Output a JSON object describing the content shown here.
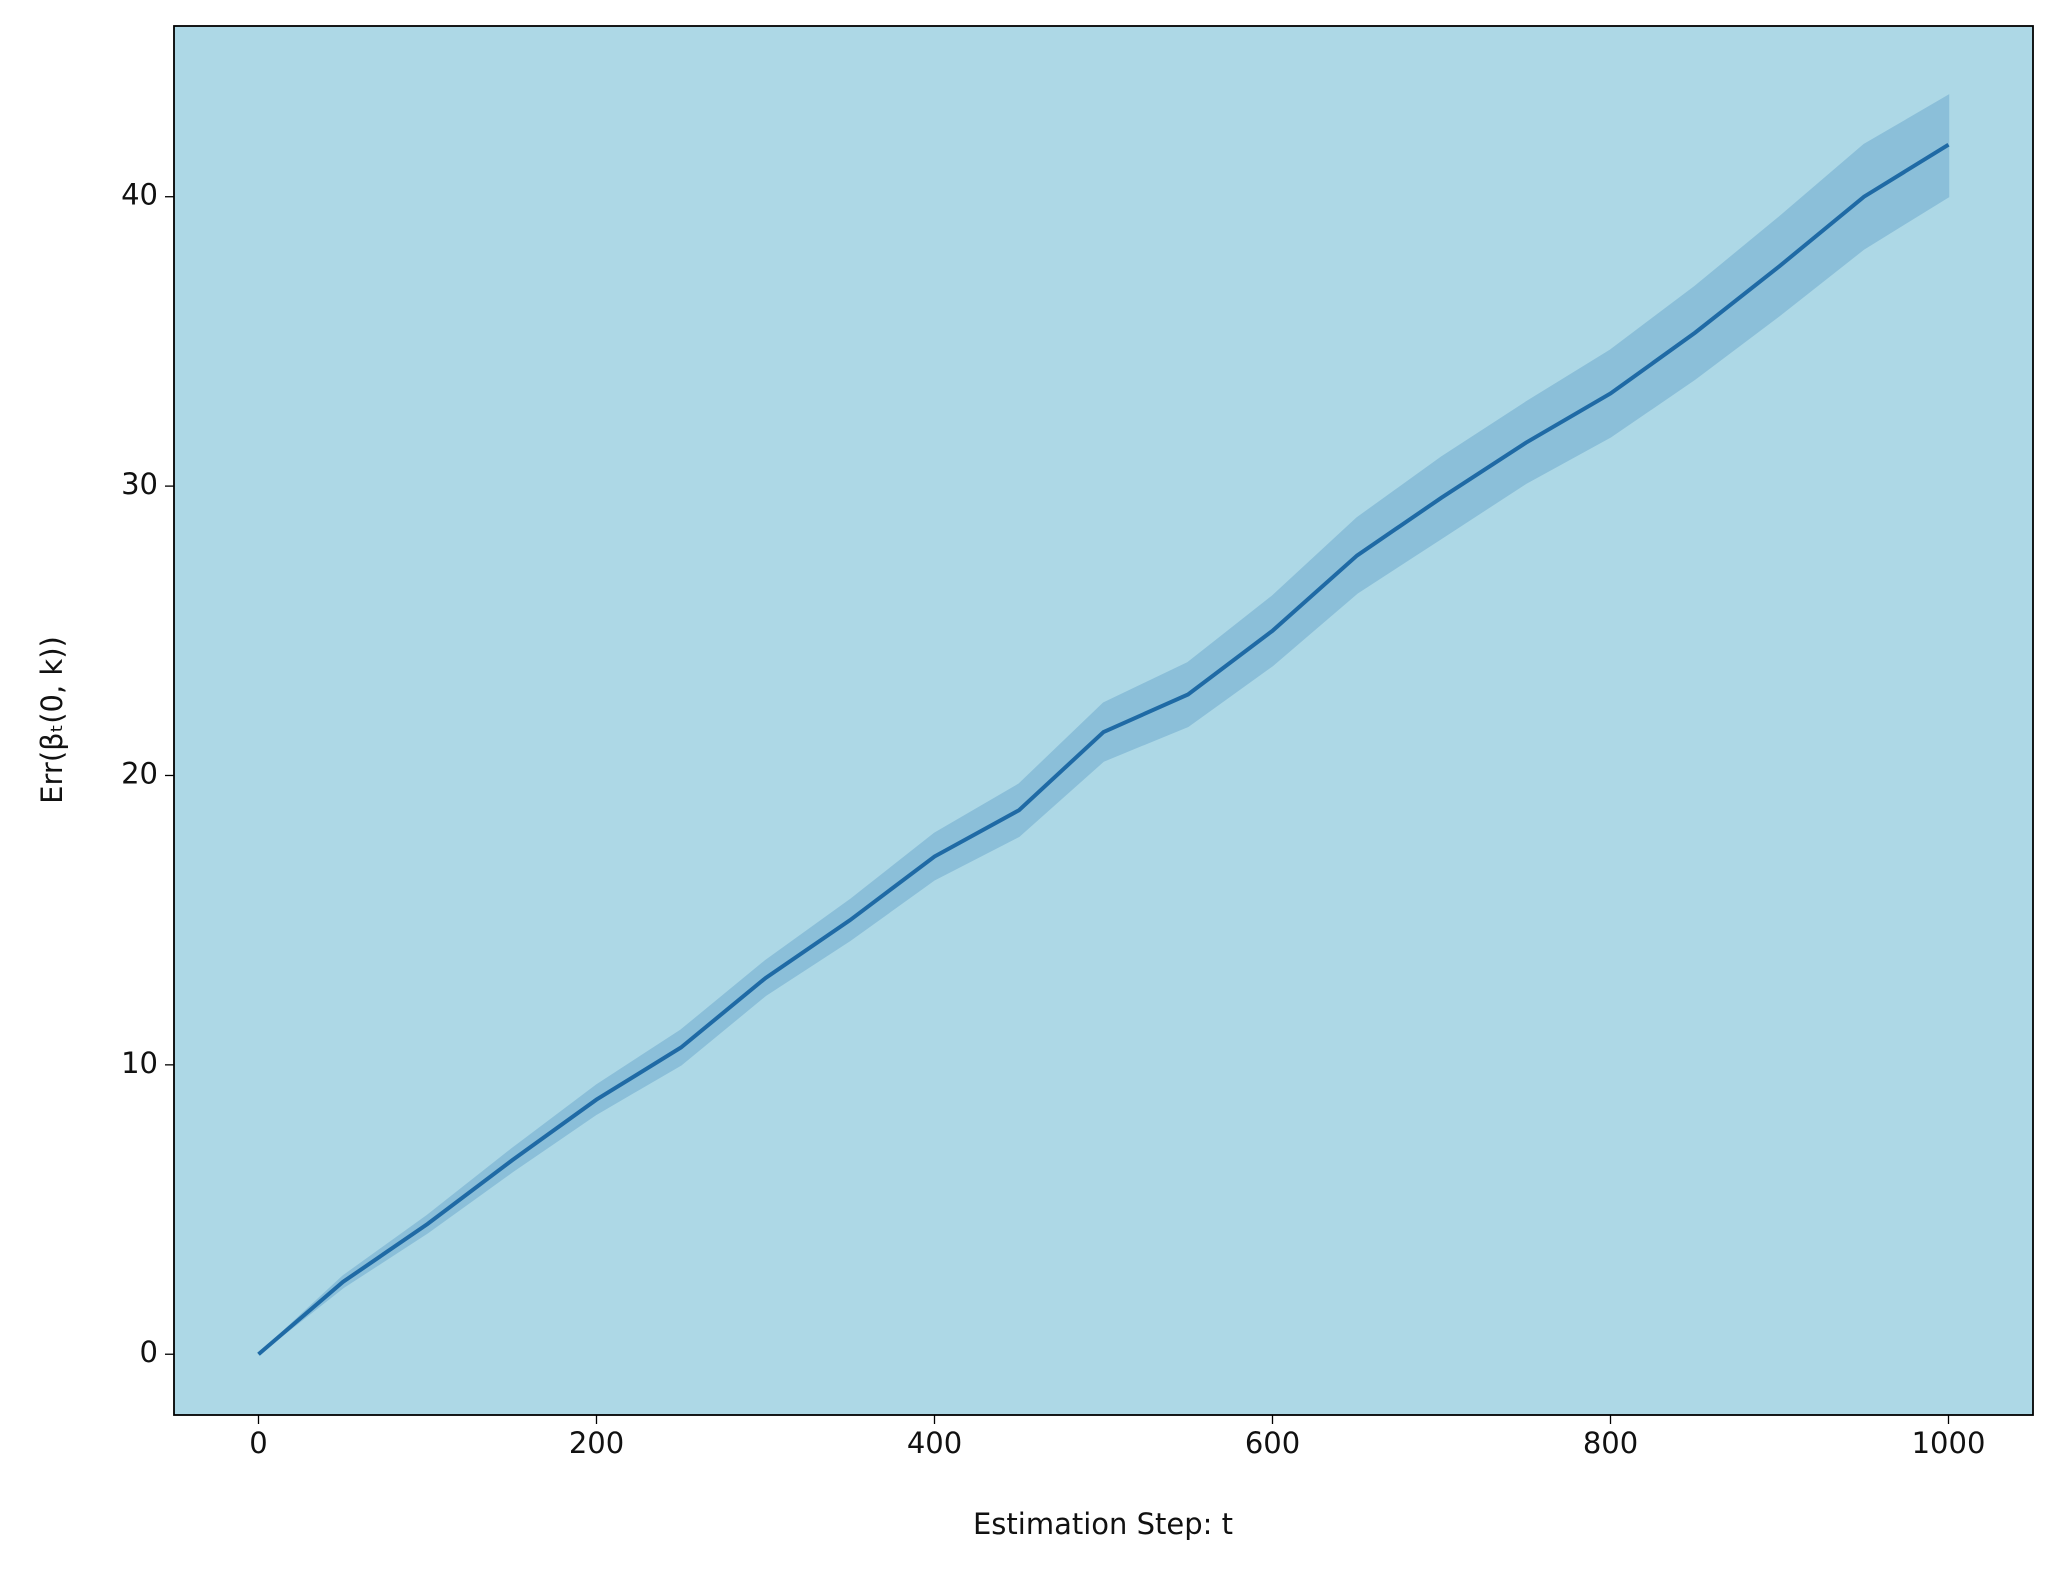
{
  "chart_data": {
    "type": "line",
    "xlabel": "Estimation Step: t",
    "ylabel": "Err(βₜ(0, k))",
    "x": [
      0,
      50,
      100,
      150,
      200,
      250,
      300,
      350,
      400,
      450,
      500,
      550,
      600,
      650,
      700,
      750,
      800,
      850,
      900,
      950,
      1000
    ],
    "series": [
      {
        "color": "#1f6aa5",
        "values": [
          0,
          2.5,
          4.5,
          6.7,
          8.8,
          10.6,
          13.0,
          15.0,
          17.2,
          18.8,
          21.5,
          22.8,
          25.0,
          27.6,
          29.6,
          31.5,
          33.2,
          35.3,
          37.6,
          40.0,
          41.8
        ]
      }
    ],
    "band": {
      "color": "#8bbfd9",
      "upper": [
        0,
        2.7,
        4.8,
        7.1,
        9.3,
        11.2,
        13.6,
        15.7,
        18.0,
        19.7,
        22.5,
        23.9,
        26.2,
        28.9,
        31.0,
        32.9,
        34.7,
        36.9,
        39.3,
        41.8,
        43.5
      ],
      "lower": [
        0,
        2.3,
        4.2,
        6.3,
        8.3,
        10.0,
        12.4,
        14.3,
        16.4,
        17.9,
        20.5,
        21.7,
        23.8,
        26.3,
        28.2,
        30.1,
        31.7,
        33.7,
        35.9,
        38.2,
        40.0
      ]
    },
    "background": "#add8e6",
    "xlim": [
      -50,
      1050
    ],
    "xticks": [
      0,
      200,
      400,
      600,
      800,
      1000
    ],
    "ylim": [
      -2.1,
      45.9
    ],
    "yticks": [
      0,
      10,
      20,
      30,
      40
    ]
  }
}
